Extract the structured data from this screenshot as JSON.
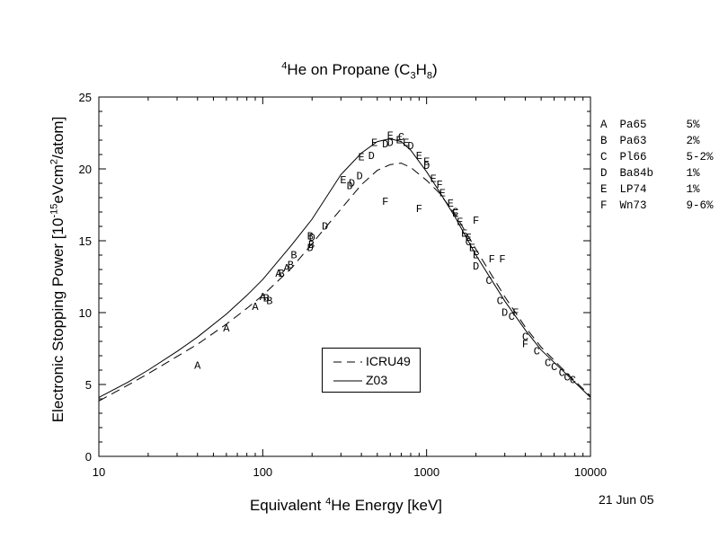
{
  "chart_data": {
    "type": "line",
    "title": {
      "pre": "",
      "sup_mass": "4",
      "text1": "He on Propane (C",
      "sub1": "3",
      "text2": "H",
      "sub2": "8",
      "text3": ")"
    },
    "xlabel": {
      "text1": "Equivalent ",
      "sup": "4",
      "text2": "He Energy [keV]"
    },
    "ylabel": {
      "text1": "Electronic Stopping Power [10",
      "sup1": "-15",
      "text2": "eVcm",
      "sup2": "2",
      "text3": "/atom]"
    },
    "x_scale": "log",
    "xlim": [
      10,
      10000
    ],
    "ylim": [
      0,
      25
    ],
    "x_ticks": [
      "10",
      "100",
      "1000",
      "10000"
    ],
    "y_ticks": [
      "0",
      "5",
      "10",
      "15",
      "20",
      "25"
    ],
    "series": [
      {
        "name": "ICRU49",
        "style": "dashed",
        "x": [
          10,
          15,
          20,
          30,
          40,
          60,
          80,
          100,
          150,
          200,
          300,
          400,
          500,
          600,
          700,
          800,
          1000,
          1200,
          1500,
          2000,
          3000,
          4000,
          5000,
          7000,
          10000
        ],
        "y": [
          3.85,
          4.95,
          5.75,
          6.95,
          7.8,
          9.2,
          10.3,
          11.2,
          13.1,
          14.8,
          17.2,
          18.9,
          19.9,
          20.3,
          20.4,
          20.1,
          19.2,
          18.3,
          16.8,
          14.4,
          11.1,
          9.0,
          7.6,
          5.9,
          4.2
        ]
      },
      {
        "name": "Z03",
        "style": "solid",
        "x": [
          10,
          15,
          20,
          30,
          40,
          60,
          80,
          100,
          150,
          200,
          300,
          400,
          500,
          600,
          700,
          800,
          1000,
          1200,
          1500,
          2000,
          3000,
          4000,
          5000,
          7000,
          10000
        ],
        "y": [
          4.1,
          5.15,
          6.0,
          7.3,
          8.3,
          9.9,
          11.2,
          12.3,
          14.7,
          16.5,
          19.6,
          21.1,
          21.9,
          22.1,
          21.9,
          21.3,
          19.8,
          18.4,
          16.6,
          14.0,
          10.8,
          8.8,
          7.4,
          5.8,
          4.1
        ]
      }
    ],
    "points": [
      {
        "label": "A",
        "x": 40,
        "y": 6.4
      },
      {
        "label": "A",
        "x": 60,
        "y": 9.0
      },
      {
        "label": "A",
        "x": 90,
        "y": 10.5
      },
      {
        "label": "A",
        "x": 100,
        "y": 11.2
      },
      {
        "label": "A",
        "x": 125,
        "y": 12.8
      },
      {
        "label": "A",
        "x": 140,
        "y": 13.2
      },
      {
        "label": "B",
        "x": 105,
        "y": 11.1
      },
      {
        "label": "B",
        "x": 110,
        "y": 10.9
      },
      {
        "label": "B",
        "x": 130,
        "y": 12.8
      },
      {
        "label": "B",
        "x": 148,
        "y": 13.4
      },
      {
        "label": "B",
        "x": 155,
        "y": 14.1
      },
      {
        "label": "B",
        "x": 195,
        "y": 15.4
      },
      {
        "label": "B",
        "x": 198,
        "y": 14.8
      },
      {
        "label": "C",
        "x": 700,
        "y": 22.3
      },
      {
        "label": "C",
        "x": 1500,
        "y": 17.1
      },
      {
        "label": "C",
        "x": 1800,
        "y": 15.0
      },
      {
        "label": "C",
        "x": 2400,
        "y": 12.3
      },
      {
        "label": "C",
        "x": 2800,
        "y": 10.9
      },
      {
        "label": "C",
        "x": 3300,
        "y": 9.8
      },
      {
        "label": "C",
        "x": 4000,
        "y": 8.4
      },
      {
        "label": "C",
        "x": 4700,
        "y": 7.4
      },
      {
        "label": "C",
        "x": 5500,
        "y": 6.6
      },
      {
        "label": "C",
        "x": 6000,
        "y": 6.3
      },
      {
        "label": "C",
        "x": 6700,
        "y": 5.9
      },
      {
        "label": "C",
        "x": 7200,
        "y": 5.6
      },
      {
        "label": "C",
        "x": 7800,
        "y": 5.4
      },
      {
        "label": "D",
        "x": 195,
        "y": 14.6
      },
      {
        "label": "D",
        "x": 200,
        "y": 15.3
      },
      {
        "label": "D",
        "x": 240,
        "y": 16.1
      },
      {
        "label": "D",
        "x": 340,
        "y": 18.9
      },
      {
        "label": "D",
        "x": 350,
        "y": 19.1
      },
      {
        "label": "D",
        "x": 390,
        "y": 19.6
      },
      {
        "label": "D",
        "x": 460,
        "y": 21.0
      },
      {
        "label": "D",
        "x": 560,
        "y": 21.8
      },
      {
        "label": "D",
        "x": 600,
        "y": 21.9
      },
      {
        "label": "D",
        "x": 800,
        "y": 21.7
      },
      {
        "label": "D",
        "x": 1000,
        "y": 20.3
      },
      {
        "label": "D",
        "x": 2000,
        "y": 13.3
      },
      {
        "label": "D",
        "x": 3000,
        "y": 10.1
      },
      {
        "label": "E",
        "x": 310,
        "y": 19.3
      },
      {
        "label": "E",
        "x": 400,
        "y": 20.9
      },
      {
        "label": "E",
        "x": 480,
        "y": 21.9
      },
      {
        "label": "E",
        "x": 600,
        "y": 22.4
      },
      {
        "label": "E",
        "x": 680,
        "y": 22.1
      },
      {
        "label": "E",
        "x": 750,
        "y": 21.9
      },
      {
        "label": "E",
        "x": 900,
        "y": 21.0
      },
      {
        "label": "E",
        "x": 1000,
        "y": 20.6
      },
      {
        "label": "E",
        "x": 1100,
        "y": 19.4
      },
      {
        "label": "E",
        "x": 1250,
        "y": 18.4
      },
      {
        "label": "E",
        "x": 1400,
        "y": 17.7
      },
      {
        "label": "E",
        "x": 1500,
        "y": 17.0
      },
      {
        "label": "E",
        "x": 1600,
        "y": 16.4
      },
      {
        "label": "E",
        "x": 1700,
        "y": 15.6
      },
      {
        "label": "E",
        "x": 1800,
        "y": 15.3
      },
      {
        "label": "E",
        "x": 1900,
        "y": 14.6
      },
      {
        "label": "E",
        "x": 2000,
        "y": 14.1
      },
      {
        "label": "F",
        "x": 560,
        "y": 17.8
      },
      {
        "label": "F",
        "x": 900,
        "y": 17.3
      },
      {
        "label": "F",
        "x": 1200,
        "y": 19.0
      },
      {
        "label": "F",
        "x": 2000,
        "y": 16.5
      },
      {
        "label": "F",
        "x": 2500,
        "y": 13.8
      },
      {
        "label": "F",
        "x": 2900,
        "y": 13.8
      },
      {
        "label": "F",
        "x": 3500,
        "y": 10.1
      },
      {
        "label": "F",
        "x": 4000,
        "y": 7.9
      }
    ]
  },
  "legend": [
    {
      "label": "ICRU49",
      "style": "dashed"
    },
    {
      "label": "Z03",
      "style": "solid"
    }
  ],
  "references": [
    {
      "key": "A",
      "name": "Pa65",
      "err": "5%"
    },
    {
      "key": "B",
      "name": "Pa63",
      "err": "2%"
    },
    {
      "key": "C",
      "name": "Pl66",
      "err": "5-2%"
    },
    {
      "key": "D",
      "name": "Ba84b",
      "err": "1%"
    },
    {
      "key": "E",
      "name": "LP74",
      "err": "1%"
    },
    {
      "key": "F",
      "name": "Wn73",
      "err": "9-6%"
    }
  ],
  "date": "21 Jun 05"
}
